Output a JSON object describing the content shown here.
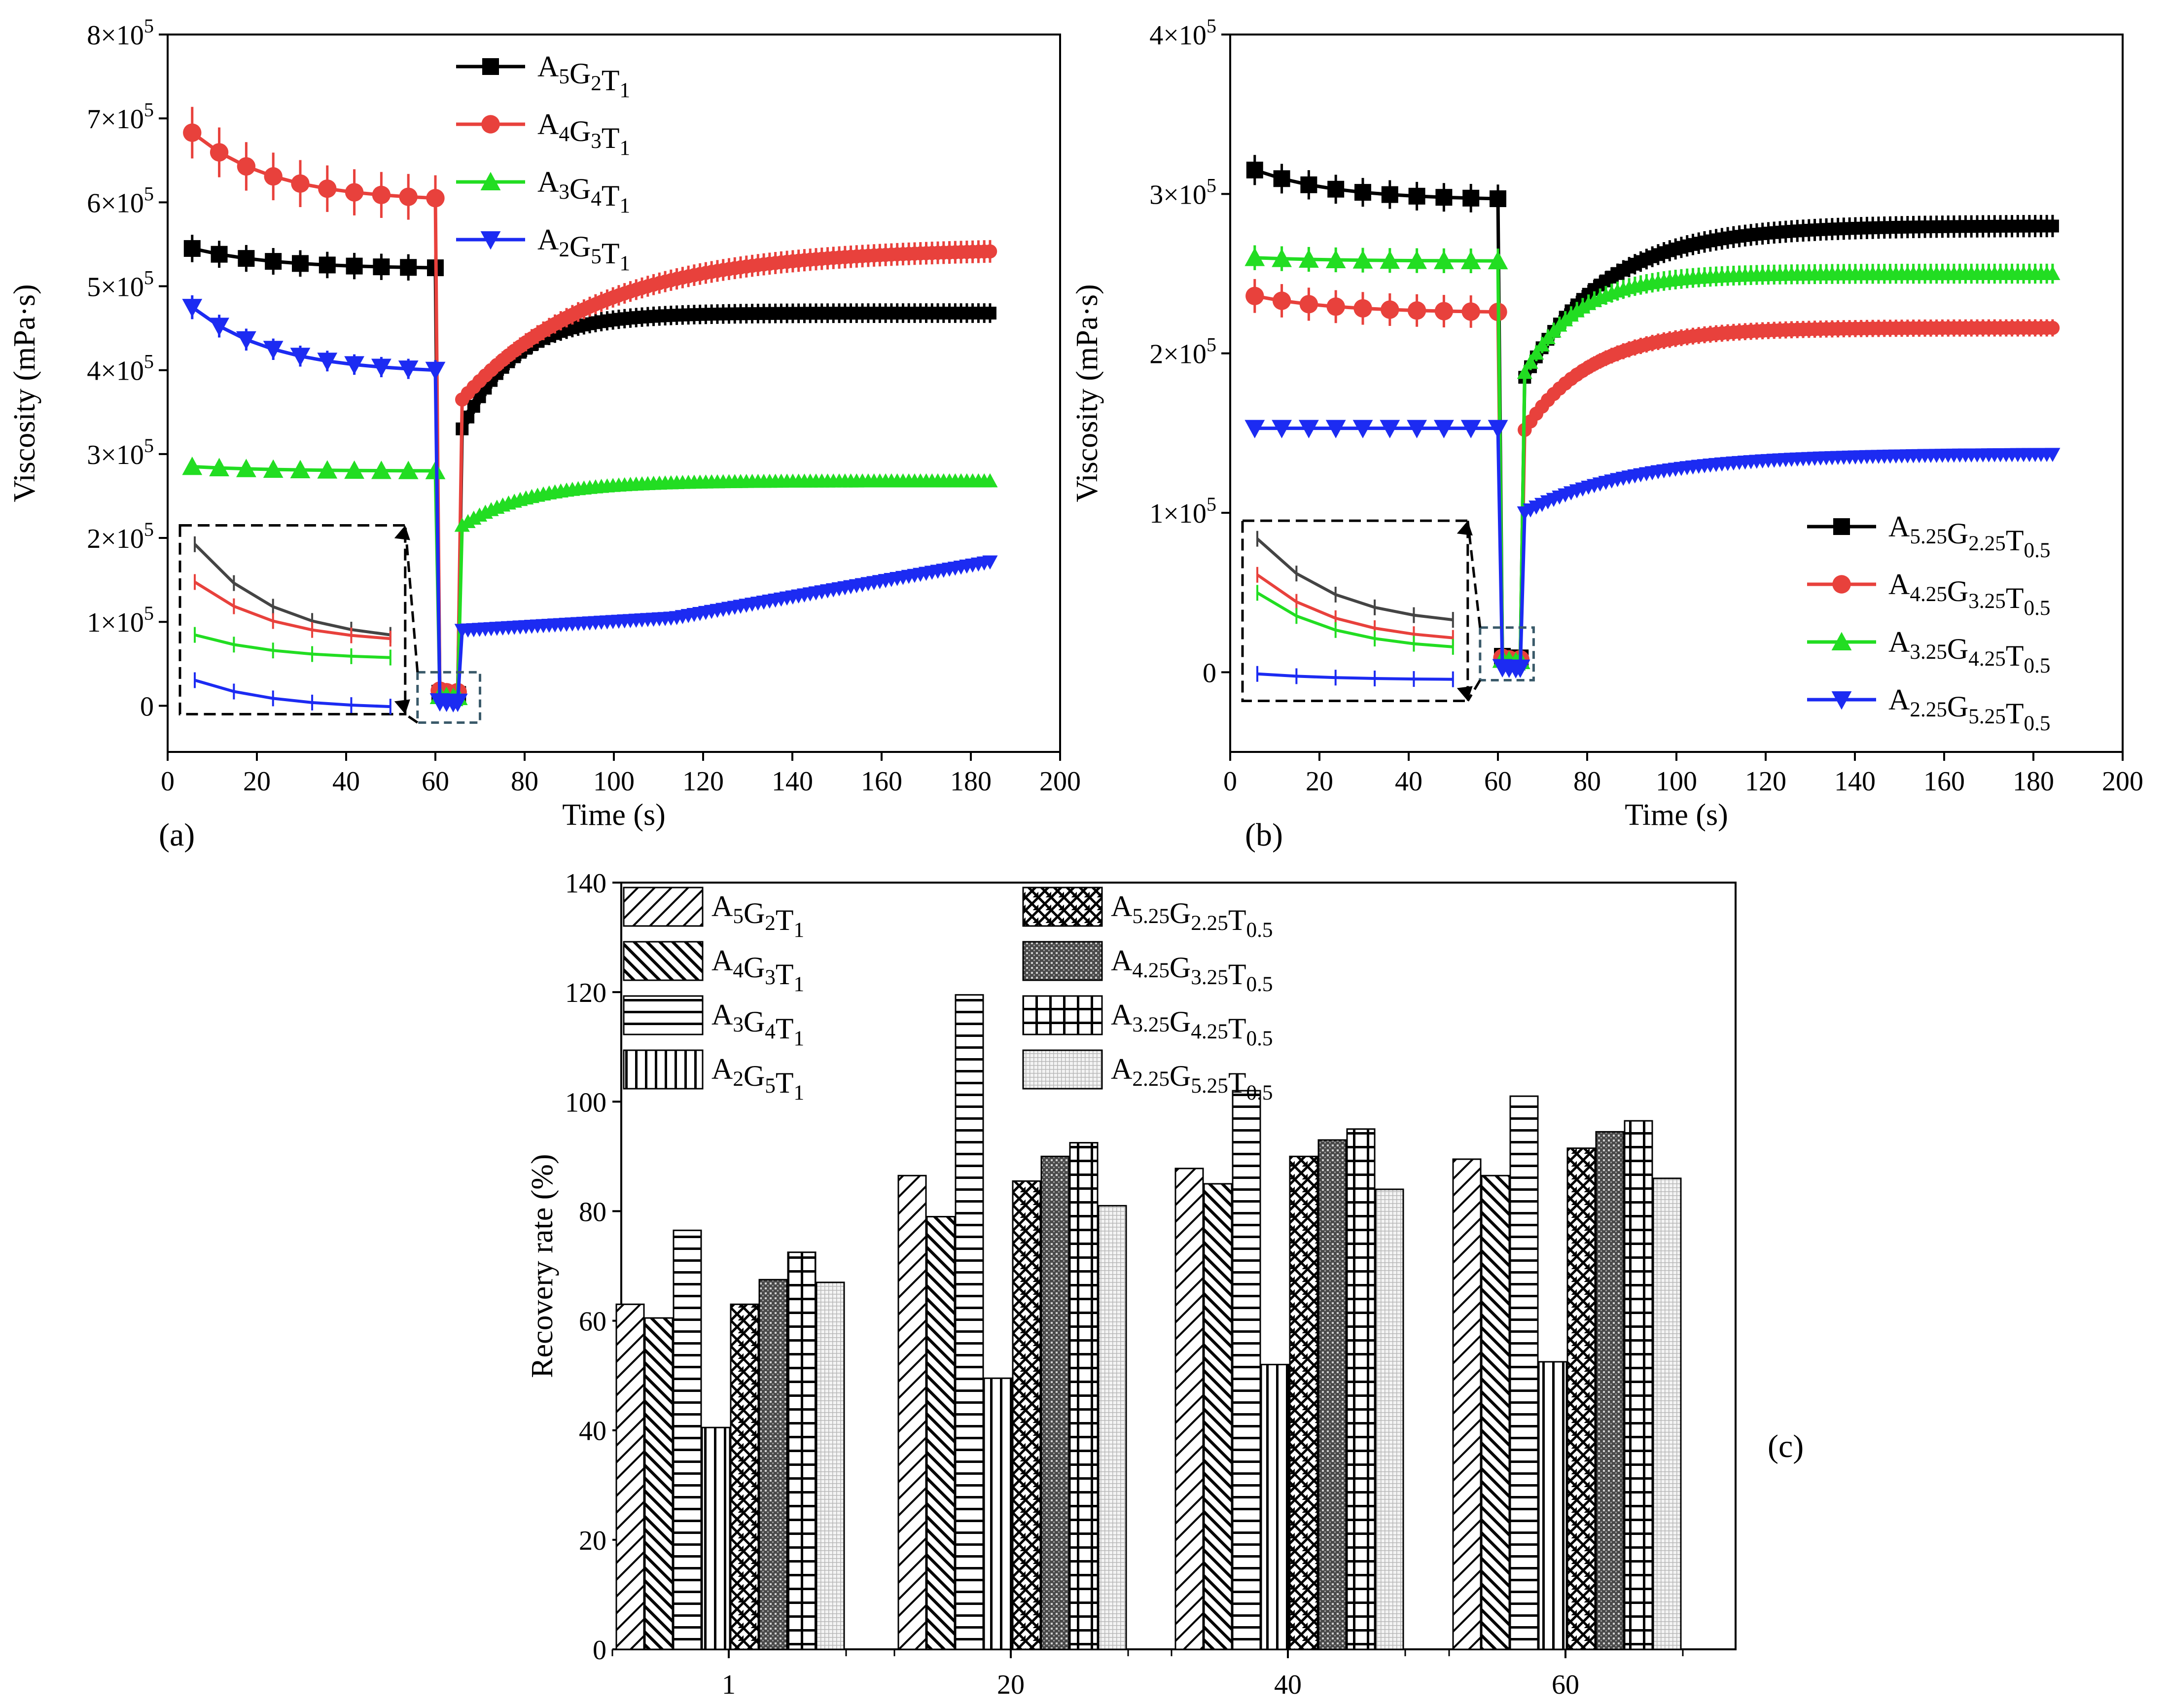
{
  "figure": {
    "panel_labels": [
      "(a)",
      "(b)",
      "(c)"
    ]
  },
  "chart_data": [
    {
      "id": "a",
      "type": "line",
      "xlabel": "Time (s)",
      "ylabel": "Viscosity (mPa·s)",
      "xlim": [
        0,
        200
      ],
      "ylim": [
        -55000,
        800000
      ],
      "xticks": [
        0,
        20,
        40,
        60,
        80,
        100,
        120,
        140,
        160,
        180,
        200
      ],
      "yticks": [
        0,
        100000,
        200000,
        300000,
        400000,
        500000,
        600000,
        700000,
        800000
      ],
      "ytick_labels": [
        {
          "base": "0",
          "exp": ""
        },
        {
          "base": "1×10",
          "exp": "5"
        },
        {
          "base": "2×10",
          "exp": "5"
        },
        {
          "base": "3×10",
          "exp": "5"
        },
        {
          "base": "4×10",
          "exp": "5"
        },
        {
          "base": "5×10",
          "exp": "5"
        },
        {
          "base": "6×10",
          "exp": "5"
        },
        {
          "base": "7×10",
          "exp": "5"
        },
        {
          "base": "8×10",
          "exp": "5"
        }
      ],
      "legend_position": "top-center",
      "inset": {
        "description_label": "zoom of 60-66 s region",
        "box_x": [
          56,
          70
        ],
        "box_y": [
          -20000,
          40000
        ]
      },
      "series": [
        {
          "name": "A5G2T1",
          "label_parts": [
            [
              "A",
              "5"
            ],
            [
              "G",
              "2"
            ],
            [
              "T",
              "1"
            ]
          ],
          "color": "#000000",
          "marker": "square",
          "phases": {
            "initial": {
              "start": 545000,
              "end": 522000
            },
            "low": 15000,
            "recover": {
              "start": 330000,
              "plateau": 468000,
              "tau": 12
            }
          }
        },
        {
          "name": "A4G3T1",
          "label_parts": [
            [
              "A",
              "4"
            ],
            [
              "G",
              "3"
            ],
            [
              "T",
              "1"
            ]
          ],
          "color": "#e8413c",
          "marker": "circle",
          "phases": {
            "initial": {
              "start": 683000,
              "end": 605000
            },
            "low": 18000,
            "recover": {
              "start": 365000,
              "plateau": 545000,
              "tau": 30
            }
          }
        },
        {
          "name": "A3G4T1",
          "label_parts": [
            [
              "A",
              "3"
            ],
            [
              "G",
              "4"
            ],
            [
              "T",
              "1"
            ]
          ],
          "color": "#22dd22",
          "marker": "triangle-up",
          "phases": {
            "initial": {
              "start": 285000,
              "end": 280000
            },
            "low": 12000,
            "recover": {
              "start": 215000,
              "plateau": 268000,
              "tau": 15
            }
          }
        },
        {
          "name": "A2G5T1",
          "label_parts": [
            [
              "A",
              "2"
            ],
            [
              "G",
              "5"
            ],
            [
              "T",
              "1"
            ]
          ],
          "color": "#1c2bf2",
          "marker": "triangle-down",
          "phases": {
            "initial": {
              "start": 475000,
              "end": 400000
            },
            "low": 5000,
            "recover": {
              "start": 90000,
              "plateau": 172000,
              "tau": 0
            }
          }
        }
      ]
    },
    {
      "id": "b",
      "type": "line",
      "xlabel": "Time (s)",
      "ylabel": "Viscosity (mPa·s)",
      "xlim": [
        0,
        200
      ],
      "ylim": [
        -50000,
        400000
      ],
      "xticks": [
        0,
        20,
        40,
        60,
        80,
        100,
        120,
        140,
        160,
        180,
        200
      ],
      "yticks": [
        0,
        100000,
        200000,
        300000,
        400000
      ],
      "ytick_labels": [
        {
          "base": "0",
          "exp": ""
        },
        {
          "base": "1×10",
          "exp": "5"
        },
        {
          "base": "2×10",
          "exp": "5"
        },
        {
          "base": "3×10",
          "exp": "5"
        },
        {
          "base": "4×10",
          "exp": "5"
        }
      ],
      "legend_position": "bottom-right",
      "inset": {
        "description_label": "zoom of 60-66 s region",
        "box_x": [
          56,
          68
        ],
        "box_y": [
          -5000,
          28000
        ]
      },
      "series": [
        {
          "name": "A5.25G2.25T0.5",
          "label_parts": [
            [
              "A",
              "5.25"
            ],
            [
              "G",
              "2.25"
            ],
            [
              "T",
              "0.5"
            ]
          ],
          "color": "#000000",
          "marker": "square",
          "phases": {
            "initial": {
              "start": 315000,
              "end": 297000
            },
            "low": 10000,
            "recover": {
              "start": 185000,
              "plateau": 280000,
              "tau": 18
            }
          }
        },
        {
          "name": "A4.25G3.25T0.5",
          "label_parts": [
            [
              "A",
              "4.25"
            ],
            [
              "G",
              "3.25"
            ],
            [
              "T",
              "0.5"
            ]
          ],
          "color": "#e8413c",
          "marker": "circle",
          "phases": {
            "initial": {
              "start": 236000,
              "end": 226000
            },
            "low": 9000,
            "recover": {
              "start": 152000,
              "plateau": 216000,
              "tau": 15
            }
          }
        },
        {
          "name": "A3.25G4.25T0.5",
          "label_parts": [
            [
              "A",
              "3.25"
            ],
            [
              "G",
              "4.25"
            ],
            [
              "T",
              "0.5"
            ]
          ],
          "color": "#22dd22",
          "marker": "triangle-up",
          "phases": {
            "initial": {
              "start": 260000,
              "end": 258000
            },
            "low": 8000,
            "recover": {
              "start": 188000,
              "plateau": 250000,
              "tau": 12
            }
          }
        },
        {
          "name": "A2.25G5.25T0.5",
          "label_parts": [
            [
              "A",
              "2.25"
            ],
            [
              "G",
              "5.25"
            ],
            [
              "T",
              "0.5"
            ]
          ],
          "color": "#1c2bf2",
          "marker": "triangle-down",
          "phases": {
            "initial": {
              "start": 153000,
              "end": 153000
            },
            "low": 3000,
            "recover": {
              "start": 100000,
              "plateau": 137000,
              "tau": 25
            }
          }
        }
      ]
    },
    {
      "id": "c",
      "type": "bar",
      "xlabel": "",
      "ylabel": "Recovery rate (%)",
      "ylim": [
        0,
        140
      ],
      "yticks": [
        0,
        20,
        40,
        60,
        80,
        100,
        120,
        140
      ],
      "categories": [
        "1",
        "20",
        "40",
        "60"
      ],
      "legend_position": "top-left",
      "series": [
        {
          "name": "A5G2T1",
          "label_parts": [
            [
              "A",
              "5"
            ],
            [
              "G",
              "2"
            ],
            [
              "T",
              "1"
            ]
          ],
          "pattern": "diag-up",
          "values": [
            63,
            86.5,
            87.8,
            89.5
          ]
        },
        {
          "name": "A4G3T1",
          "label_parts": [
            [
              "A",
              "4"
            ],
            [
              "G",
              "3"
            ],
            [
              "T",
              "1"
            ]
          ],
          "pattern": "diag-down",
          "values": [
            60.5,
            79,
            85,
            86.5
          ]
        },
        {
          "name": "A3G4T1",
          "label_parts": [
            [
              "A",
              "3"
            ],
            [
              "G",
              "4"
            ],
            [
              "T",
              "1"
            ]
          ],
          "pattern": "horizontal",
          "values": [
            76.5,
            119.5,
            102,
            101
          ]
        },
        {
          "name": "A2G5T1",
          "label_parts": [
            [
              "A",
              "2"
            ],
            [
              "G",
              "5"
            ],
            [
              "T",
              "1"
            ]
          ],
          "pattern": "vertical",
          "values": [
            40.5,
            49.5,
            52,
            52.5
          ]
        },
        {
          "name": "A5.25G2.25T0.5",
          "label_parts": [
            [
              "A",
              "5.25"
            ],
            [
              "G",
              "2.25"
            ],
            [
              "T",
              "0.5"
            ]
          ],
          "pattern": "crosshatch",
          "values": [
            63,
            85.5,
            90,
            91.5
          ]
        },
        {
          "name": "A4.25G3.25T0.5",
          "label_parts": [
            [
              "A",
              "4.25"
            ],
            [
              "G",
              "3.25"
            ],
            [
              "T",
              "0.5"
            ]
          ],
          "pattern": "dense",
          "values": [
            67.5,
            90,
            93,
            94.5
          ]
        },
        {
          "name": "A3.25G4.25T0.5",
          "label_parts": [
            [
              "A",
              "3.25"
            ],
            [
              "G",
              "4.25"
            ],
            [
              "T",
              "0.5"
            ]
          ],
          "pattern": "grid",
          "values": [
            72.5,
            92.5,
            95,
            96.5
          ]
        },
        {
          "name": "A2.25G5.25T0.5",
          "label_parts": [
            [
              "A",
              "2.25"
            ],
            [
              "G",
              "5.25"
            ],
            [
              "T",
              "0.5"
            ]
          ],
          "pattern": "dots",
          "values": [
            67,
            81,
            84,
            86
          ]
        }
      ]
    }
  ]
}
